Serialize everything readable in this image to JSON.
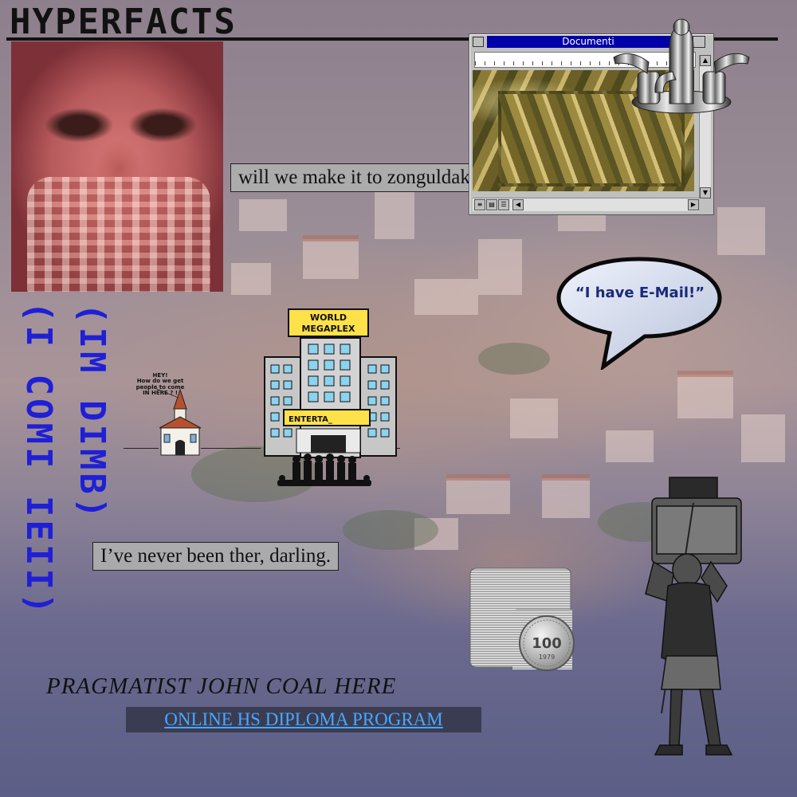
{
  "site": {
    "title": "HYPERFACTS"
  },
  "captions": {
    "zonguldak": "will we make it to zonguldak?",
    "never_been": "I’ve never been ther, darling."
  },
  "vertical_text": {
    "column_right": "(IM DIMB)",
    "column_left": "(I COMI IEII)"
  },
  "document_window": {
    "title": "Documenti"
  },
  "speech_bubble": {
    "text": "“I have E-Mail!”"
  },
  "megaplex": {
    "sign": [
      "WORLD",
      "MEGAPLEX"
    ],
    "marquee": "ENTERTA_"
  },
  "church": {
    "speech": [
      "HEY!",
      "How do we get",
      "people to come",
      "IN HERE ? !"
    ]
  },
  "coin": {
    "value": "100",
    "year": "1979"
  },
  "footer": {
    "name": "PRAGMATIST JOHN COAL HERE",
    "link": "ONLINE HS DIPLOMA PROGRAM"
  },
  "colors": {
    "vertical_text": "#1f1fd6",
    "link": "#49a7ff",
    "window_title_bar": "#0000a8"
  },
  "icons": [
    "faucet-icon",
    "coin-icon",
    "church-icon",
    "building-icon",
    "speech-bubble-icon"
  ]
}
